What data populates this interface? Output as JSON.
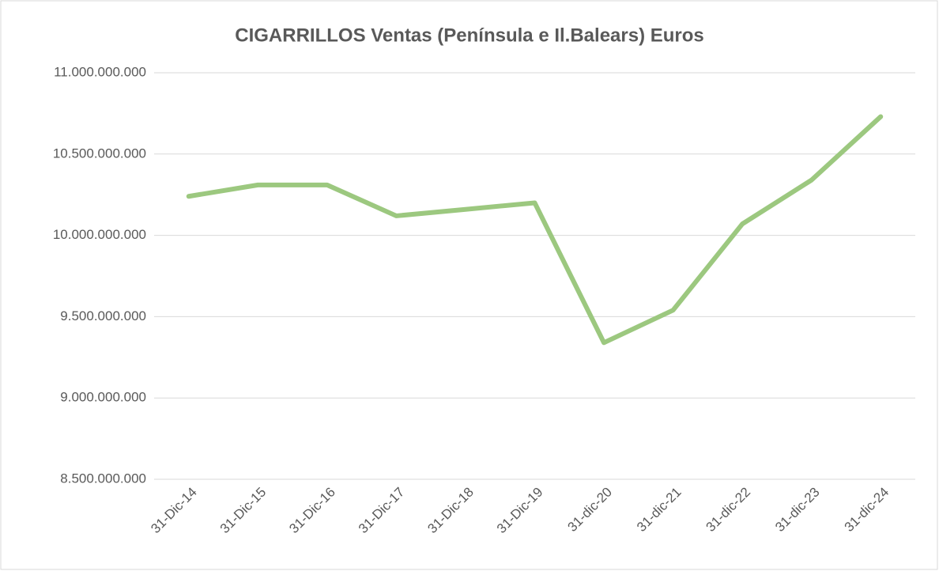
{
  "chart_data": {
    "type": "line",
    "title": "CIGARRILLOS Ventas (Península e Il.Balears) Euros",
    "categories": [
      "31-Dic-14",
      "31-Dic-15",
      "31-Dic-16",
      "31-Dic-17",
      "31-Dic-18",
      "31-Dic-19",
      "31-dic-20",
      "31-dic-21",
      "31-dic-22",
      "31-dic-23",
      "31-dic-24"
    ],
    "series": [
      {
        "name": "CIGARRILLOS",
        "color": "#9cc87f",
        "values": [
          10240000000,
          10310000000,
          10310000000,
          10120000000,
          10160000000,
          10200000000,
          9340000000,
          9540000000,
          10070000000,
          10340000000,
          10730000000
        ]
      }
    ],
    "ylim": [
      8500000000,
      11000000000
    ],
    "yticks": [
      {
        "value": 8500000000,
        "label": "8.500.000.000"
      },
      {
        "value": 9000000000,
        "label": "9.000.000.000"
      },
      {
        "value": 9500000000,
        "label": "9.500.000.000"
      },
      {
        "value": 10000000000,
        "label": "10.000.000.000"
      },
      {
        "value": 10500000000,
        "label": "10.500.000.000"
      },
      {
        "value": 11000000000,
        "label": "11.000.000.000"
      }
    ],
    "grid": true
  }
}
